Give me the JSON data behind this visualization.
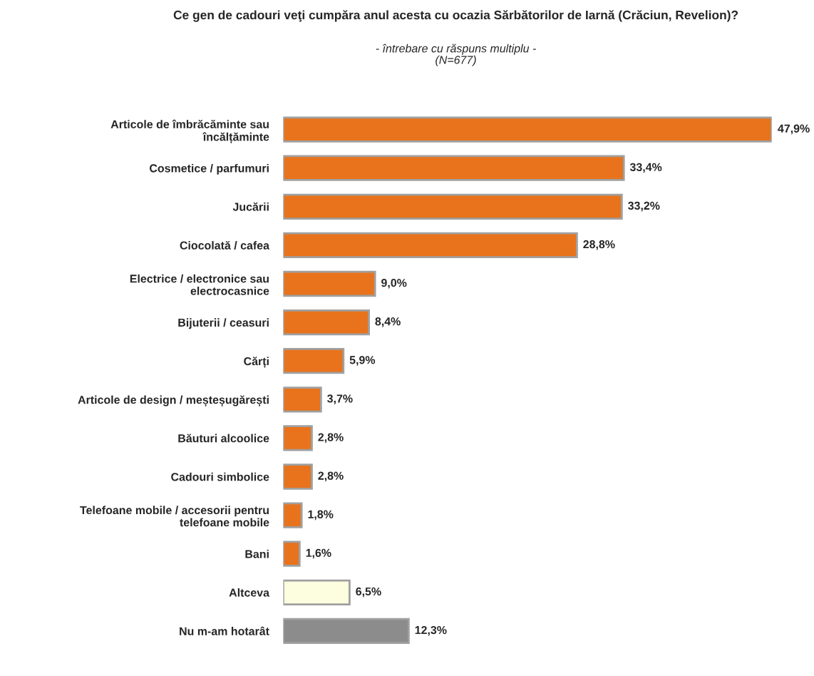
{
  "chart_data": {
    "type": "bar",
    "orientation": "horizontal",
    "title": "Ce gen de cadouri veţi cumpăra anul acesta cu ocazia Sărbătorilor de Iarnă (Crăciun, Revelion)?",
    "subtitle": "- întrebare cu răspuns multiplu -\n(N=677)",
    "categories": [
      "Articole de îmbrăcăminte sau încălțăminte",
      "Cosmetice / parfumuri",
      "Jucării",
      "Ciocolată / cafea",
      "Electrice / electronice sau electrocasnice",
      "Bijuterii / ceasuri",
      "Cărți",
      "Articole de design / meșteșugărești",
      "Băuturi alcoolice",
      "Cadouri simbolice",
      "Telefoane mobile / accesorii pentru telefoane mobile",
      "Bani",
      "Altceva",
      "Nu m-am hotarât"
    ],
    "values": [
      47.9,
      33.4,
      33.2,
      28.8,
      9.0,
      8.4,
      5.9,
      3.7,
      2.8,
      2.8,
      1.8,
      1.6,
      6.5,
      12.3
    ],
    "value_labels": [
      "47,9%",
      "33,4%",
      "33,2%",
      "28,8%",
      "9,0%",
      "8,4%",
      "5,9%",
      "3,7%",
      "2,8%",
      "2,8%",
      "1,8%",
      "1,6%",
      "6,5%",
      "12,3%"
    ],
    "colors": [
      "#e8731c",
      "#e8731c",
      "#e8731c",
      "#e8731c",
      "#e8731c",
      "#e8731c",
      "#e8731c",
      "#e8731c",
      "#e8731c",
      "#e8731c",
      "#e8731c",
      "#e8731c",
      "#fdfde0",
      "#8c8c8c"
    ],
    "grid": false,
    "legend": false
  }
}
